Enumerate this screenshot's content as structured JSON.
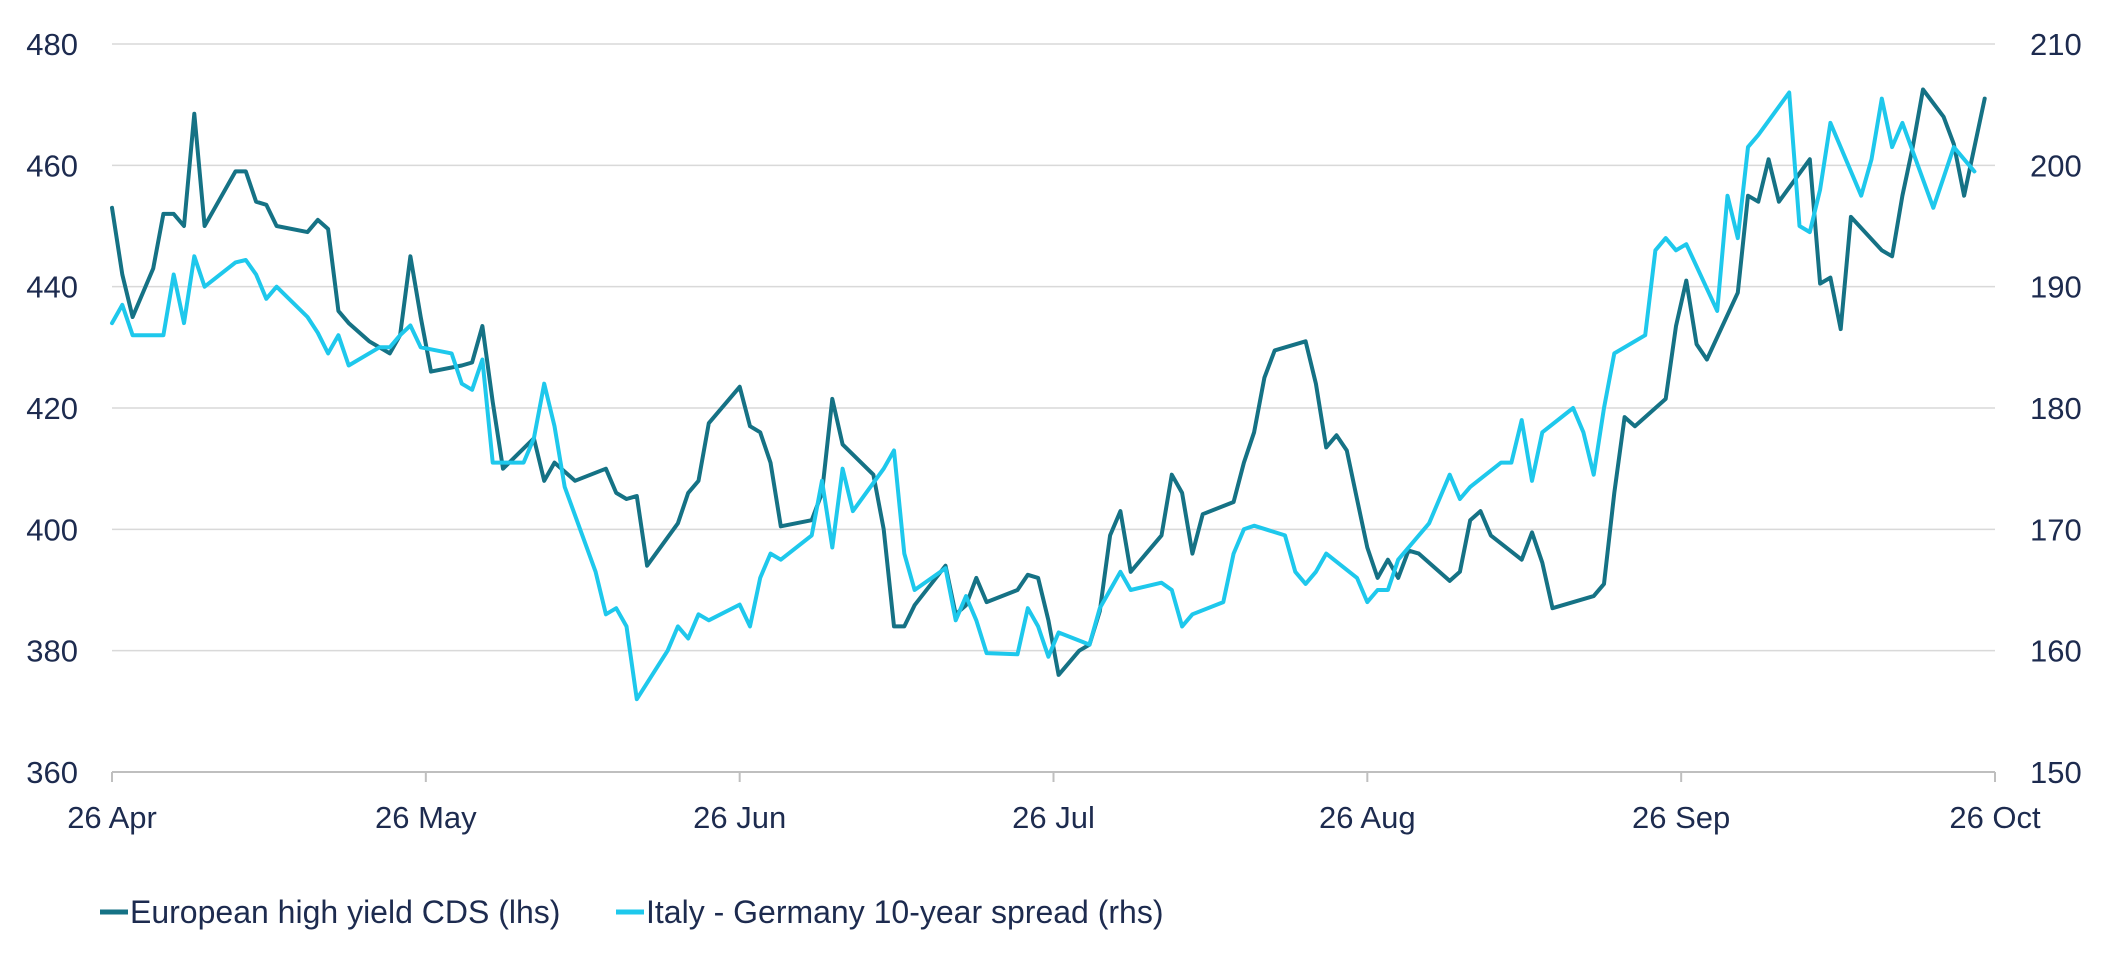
{
  "chart_data": {
    "type": "line",
    "title": "",
    "xlabel": "",
    "ylabel_left": "",
    "ylabel_right": "",
    "x_ticks": [
      "26 Apr",
      "26 May",
      "26 Jun",
      "26 Jul",
      "26 Aug",
      "26 Sep",
      "26 Oct"
    ],
    "x_range_days": [
      0,
      183
    ],
    "y_left": {
      "ticks": [
        480,
        460,
        440,
        420,
        400,
        380,
        360
      ],
      "range": [
        360,
        480
      ]
    },
    "y_right": {
      "ticks": [
        210,
        200,
        190,
        180,
        170,
        160,
        150
      ],
      "range": [
        150,
        210
      ]
    },
    "grid": "horizontal",
    "legend_position": "bottom-left",
    "series": [
      {
        "name": "European high yield CDS (lhs)",
        "axis": "left",
        "color": "#157285",
        "points": [
          [
            0,
            453
          ],
          [
            1,
            442
          ],
          [
            2,
            435
          ],
          [
            4,
            443
          ],
          [
            5,
            452
          ],
          [
            6,
            452
          ],
          [
            7,
            450
          ],
          [
            8,
            468.5
          ],
          [
            9,
            450
          ],
          [
            10,
            453
          ],
          [
            12,
            459
          ],
          [
            13,
            459
          ],
          [
            14,
            454
          ],
          [
            15,
            453.5
          ],
          [
            16,
            450
          ],
          [
            19,
            449
          ],
          [
            20,
            451
          ],
          [
            21,
            449.5
          ],
          [
            22,
            436
          ],
          [
            23,
            434
          ],
          [
            25,
            431
          ],
          [
            27,
            429
          ],
          [
            28,
            432
          ],
          [
            29,
            445
          ],
          [
            30,
            435
          ],
          [
            31,
            426
          ],
          [
            34,
            427
          ],
          [
            35,
            427.5
          ],
          [
            36,
            433.5
          ],
          [
            37,
            421
          ],
          [
            38,
            410
          ],
          [
            41,
            415
          ],
          [
            42,
            408
          ],
          [
            43,
            411
          ],
          [
            45,
            408
          ],
          [
            48,
            410
          ],
          [
            49,
            406
          ],
          [
            50,
            405
          ],
          [
            51,
            405.5
          ],
          [
            52,
            394
          ],
          [
            55,
            401
          ],
          [
            56,
            406
          ],
          [
            57,
            408
          ],
          [
            58,
            417.5
          ],
          [
            61,
            423.5
          ],
          [
            62,
            417
          ],
          [
            63,
            416
          ],
          [
            64,
            411
          ],
          [
            65,
            400.5
          ],
          [
            68,
            401.5
          ],
          [
            69,
            406
          ],
          [
            70,
            421.5
          ],
          [
            71,
            414
          ],
          [
            74,
            409
          ],
          [
            75,
            400
          ],
          [
            76,
            384
          ],
          [
            77,
            384
          ],
          [
            78,
            387.5
          ],
          [
            81,
            394
          ],
          [
            82,
            386
          ],
          [
            83,
            387.5
          ],
          [
            84,
            392
          ],
          [
            85,
            388
          ],
          [
            88,
            390
          ],
          [
            89,
            392.5
          ],
          [
            90,
            392
          ],
          [
            91,
            385
          ],
          [
            92,
            376
          ],
          [
            94,
            380
          ],
          [
            95,
            381
          ],
          [
            96,
            386.5
          ],
          [
            97,
            399
          ],
          [
            98,
            403
          ],
          [
            99,
            393
          ],
          [
            102,
            399
          ],
          [
            103,
            409
          ],
          [
            104,
            406
          ],
          [
            105,
            396
          ],
          [
            106,
            402.5
          ],
          [
            109,
            404.5
          ],
          [
            110,
            411
          ],
          [
            111,
            416
          ],
          [
            112,
            425
          ],
          [
            113,
            429.5
          ],
          [
            116,
            431
          ],
          [
            117,
            424
          ],
          [
            118,
            413.5
          ],
          [
            119,
            415.5
          ],
          [
            120,
            413
          ],
          [
            121,
            405
          ],
          [
            122,
            397
          ],
          [
            123,
            392
          ],
          [
            124,
            395
          ],
          [
            125,
            392
          ],
          [
            126,
            396.5
          ],
          [
            127,
            396
          ],
          [
            130,
            391.5
          ],
          [
            131,
            393
          ],
          [
            132,
            401.5
          ],
          [
            133,
            403
          ],
          [
            134,
            399
          ],
          [
            137,
            395
          ],
          [
            138,
            399.5
          ],
          [
            139,
            394.5
          ],
          [
            140,
            387
          ],
          [
            144,
            389
          ],
          [
            145,
            391
          ],
          [
            146,
            406
          ],
          [
            147,
            418.5
          ],
          [
            148,
            417
          ],
          [
            151,
            421.5
          ],
          [
            152,
            433.5
          ],
          [
            153,
            441
          ],
          [
            154,
            430.5
          ],
          [
            155,
            428
          ],
          [
            158,
            439
          ],
          [
            159,
            455
          ],
          [
            160,
            454
          ],
          [
            161,
            461
          ],
          [
            162,
            454
          ],
          [
            165,
            461
          ],
          [
            166,
            440.5
          ],
          [
            167,
            441.5
          ],
          [
            168,
            433
          ],
          [
            169,
            451.5
          ],
          [
            172,
            446
          ],
          [
            173,
            445
          ],
          [
            174,
            455
          ],
          [
            175,
            463
          ],
          [
            176,
            472.5
          ],
          [
            178,
            468
          ],
          [
            179,
            463.5
          ],
          [
            180,
            455
          ],
          [
            182,
            471
          ]
        ]
      },
      {
        "name": "Italy - Germany 10-year spread (rhs)",
        "axis": "right",
        "color": "#1ec8ec",
        "points": [
          [
            0,
            187
          ],
          [
            1,
            188.5
          ],
          [
            2,
            186
          ],
          [
            5,
            186
          ],
          [
            6,
            191
          ],
          [
            7,
            187
          ],
          [
            8,
            192.5
          ],
          [
            9,
            190
          ],
          [
            12,
            192
          ],
          [
            13,
            192.2
          ],
          [
            14,
            191
          ],
          [
            15,
            189
          ],
          [
            16,
            190
          ],
          [
            19,
            187.5
          ],
          [
            20,
            186.2
          ],
          [
            21,
            184.5
          ],
          [
            22,
            186
          ],
          [
            23,
            183.5
          ],
          [
            26,
            185
          ],
          [
            27,
            185
          ],
          [
            28,
            186
          ],
          [
            29,
            186.8
          ],
          [
            30,
            185
          ],
          [
            33,
            184.5
          ],
          [
            34,
            182
          ],
          [
            35,
            181.5
          ],
          [
            36,
            184
          ],
          [
            37,
            175.5
          ],
          [
            40,
            175.5
          ],
          [
            41,
            177.5
          ],
          [
            42,
            182
          ],
          [
            43,
            178.5
          ],
          [
            44,
            173.5
          ],
          [
            47,
            166.5
          ],
          [
            48,
            163
          ],
          [
            49,
            163.5
          ],
          [
            50,
            162
          ],
          [
            51,
            156
          ],
          [
            54,
            160
          ],
          [
            55,
            162
          ],
          [
            56,
            161
          ],
          [
            57,
            163
          ],
          [
            58,
            162.5
          ],
          [
            61,
            163.8
          ],
          [
            62,
            162
          ],
          [
            63,
            166
          ],
          [
            64,
            168
          ],
          [
            65,
            167.5
          ],
          [
            68,
            169.5
          ],
          [
            69,
            174
          ],
          [
            70,
            168.5
          ],
          [
            71,
            175
          ],
          [
            72,
            171.5
          ],
          [
            75,
            175
          ],
          [
            76,
            176.5
          ],
          [
            77,
            168
          ],
          [
            78,
            165
          ],
          [
            81,
            166.8
          ],
          [
            82,
            162.5
          ],
          [
            83,
            164.5
          ],
          [
            84,
            162.5
          ],
          [
            85,
            159.8
          ],
          [
            88,
            159.7
          ],
          [
            89,
            163.5
          ],
          [
            90,
            162
          ],
          [
            91,
            159.5
          ],
          [
            92,
            161.5
          ],
          [
            95,
            160.5
          ],
          [
            96,
            163.5
          ],
          [
            97,
            165
          ],
          [
            98,
            166.5
          ],
          [
            99,
            165
          ],
          [
            102,
            165.6
          ],
          [
            103,
            165
          ],
          [
            104,
            162
          ],
          [
            105,
            163
          ],
          [
            108,
            164
          ],
          [
            109,
            168
          ],
          [
            110,
            170
          ],
          [
            111,
            170.3
          ],
          [
            114,
            169.5
          ],
          [
            115,
            166.5
          ],
          [
            116,
            165.5
          ],
          [
            117,
            166.5
          ],
          [
            118,
            168
          ],
          [
            121,
            166
          ],
          [
            122,
            164
          ],
          [
            123,
            165
          ],
          [
            124,
            165
          ],
          [
            125,
            167.5
          ],
          [
            128,
            170.5
          ],
          [
            129,
            172.5
          ],
          [
            130,
            174.5
          ],
          [
            131,
            172.5
          ],
          [
            132,
            173.5
          ],
          [
            135,
            175.5
          ],
          [
            136,
            175.5
          ],
          [
            137,
            179
          ],
          [
            138,
            174
          ],
          [
            139,
            178
          ],
          [
            142,
            180
          ],
          [
            143,
            178
          ],
          [
            144,
            174.5
          ],
          [
            145,
            180
          ],
          [
            146,
            184.5
          ],
          [
            149,
            186
          ],
          [
            150,
            193
          ],
          [
            151,
            194
          ],
          [
            152,
            193
          ],
          [
            153,
            193.5
          ],
          [
            156,
            188
          ],
          [
            157,
            197.5
          ],
          [
            158,
            194
          ],
          [
            159,
            201.5
          ],
          [
            160,
            202.5
          ],
          [
            163,
            206
          ],
          [
            164,
            195
          ],
          [
            165,
            194.5
          ],
          [
            166,
            198
          ],
          [
            167,
            203.5
          ],
          [
            170,
            197.5
          ],
          [
            171,
            200.5
          ],
          [
            172,
            205.5
          ],
          [
            173,
            201.5
          ],
          [
            174,
            203.5
          ],
          [
            177,
            196.5
          ],
          [
            178,
            199
          ],
          [
            179,
            201.5
          ],
          [
            181,
            199.5
          ]
        ]
      }
    ]
  }
}
